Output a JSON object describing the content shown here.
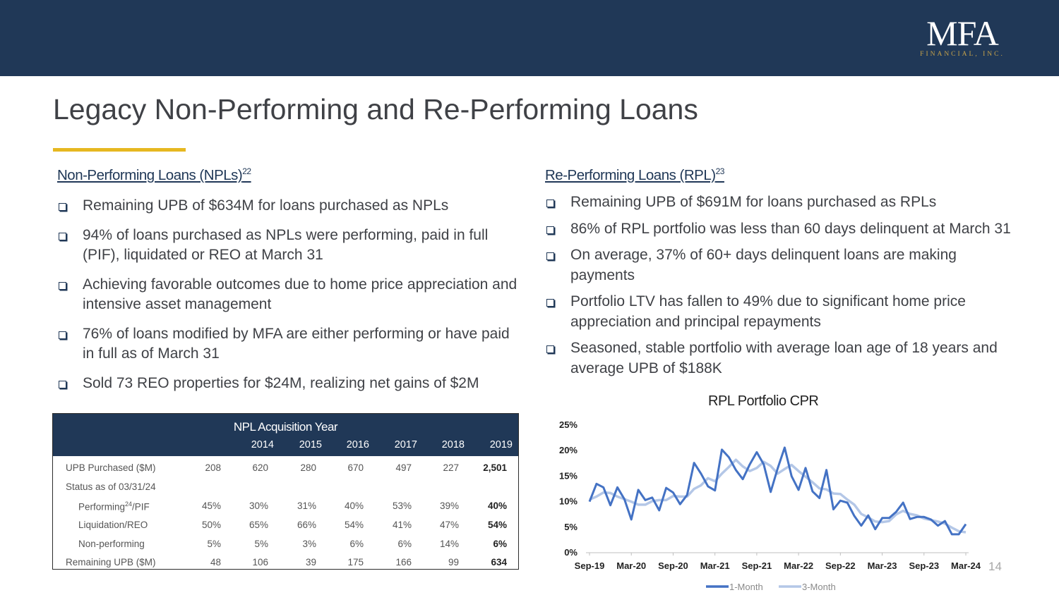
{
  "logo": {
    "main": "MFA",
    "sub": "FINANCIAL, INC."
  },
  "title": "Legacy Non-Performing and Re-Performing Loans",
  "npl": {
    "heading": "Non-Performing Loans (NPLs)",
    "heading_ref": "22",
    "bullets": [
      "Remaining UPB of $634M for loans purchased as NPLs",
      "94% of loans purchased as NPLs were performing, paid in full (PIF), liquidated or REO at March 31",
      "Achieving favorable outcomes due to home price appreciation and intensive asset management",
      "76% of loans modified by MFA are either performing or have paid in full as of March 31",
      "Sold 73 REO properties for $24M, realizing net gains of $2M"
    ]
  },
  "rpl": {
    "heading": "Re-Performing Loans (RPL)",
    "heading_ref": "23",
    "bullets": [
      "Remaining UPB of $691M for loans purchased as RPLs",
      "86% of RPL portfolio was less than 60 days delinquent at March 31",
      "On average, 37% of 60+ days delinquent loans are making payments",
      "Portfolio LTV has fallen to 49% due to significant home price appreciation and principal repayments",
      "Seasoned, stable portfolio with average loan age of 18 years and average UPB of $188K"
    ]
  },
  "npl_table": {
    "caption": "NPL Acquisition Year",
    "columns": [
      "2014",
      "2015",
      "2016",
      "2017",
      "2018",
      "2019",
      "Total"
    ],
    "rows": [
      {
        "label": "UPB Purchased ($M)",
        "values": [
          "208",
          "620",
          "280",
          "670",
          "497",
          "227",
          "2,501"
        ]
      },
      {
        "label": "Status as of 03/31/24",
        "values": []
      },
      {
        "label": "Performing",
        "label_ref": "24",
        "label_suffix": "/PIF",
        "values": [
          "45%",
          "30%",
          "31%",
          "40%",
          "53%",
          "39%",
          "40%"
        ]
      },
      {
        "label": "Liquidation/REO",
        "values": [
          "50%",
          "65%",
          "66%",
          "54%",
          "41%",
          "47%",
          "54%"
        ]
      },
      {
        "label": "Non-performing",
        "values": [
          "5%",
          "5%",
          "3%",
          "6%",
          "6%",
          "14%",
          "6%"
        ]
      },
      {
        "label": "Remaining UPB ($M)",
        "values": [
          "48",
          "106",
          "39",
          "175",
          "166",
          "99",
          "634"
        ]
      }
    ]
  },
  "chart_data": {
    "type": "line",
    "title": "RPL Portfolio CPR",
    "xlabel": "",
    "ylabel": "",
    "ylim": [
      0,
      25
    ],
    "yticks": [
      "0%",
      "5%",
      "10%",
      "15%",
      "20%",
      "25%"
    ],
    "xtick_labels": [
      "Sep-19",
      "Mar-20",
      "Sep-20",
      "Mar-21",
      "Sep-21",
      "Mar-22",
      "Sep-22",
      "Mar-23",
      "Sep-23",
      "Mar-24"
    ],
    "grid": false,
    "legend": "bottom",
    "colors": {
      "one_month": "#4472c4",
      "three_month": "#b4c7e7"
    },
    "x": [
      "Sep-19",
      "Oct-19",
      "Nov-19",
      "Dec-19",
      "Jan-20",
      "Feb-20",
      "Mar-20",
      "Apr-20",
      "May-20",
      "Jun-20",
      "Jul-20",
      "Aug-20",
      "Sep-20",
      "Oct-20",
      "Nov-20",
      "Dec-20",
      "Jan-21",
      "Feb-21",
      "Mar-21",
      "Apr-21",
      "May-21",
      "Jun-21",
      "Jul-21",
      "Aug-21",
      "Sep-21",
      "Oct-21",
      "Nov-21",
      "Dec-21",
      "Jan-22",
      "Feb-22",
      "Mar-22",
      "Apr-22",
      "May-22",
      "Jun-22",
      "Jul-22",
      "Aug-22",
      "Sep-22",
      "Oct-22",
      "Nov-22",
      "Dec-22",
      "Jan-23",
      "Feb-23",
      "Mar-23",
      "Apr-23",
      "May-23",
      "Jun-23",
      "Jul-23",
      "Aug-23",
      "Sep-23",
      "Oct-23",
      "Nov-23",
      "Dec-23",
      "Jan-24",
      "Feb-24",
      "Mar-24"
    ],
    "series": [
      {
        "name": "1-Month",
        "values": [
          10.0,
          13.5,
          12.8,
          9.3,
          12.8,
          10.5,
          6.5,
          12.3,
          10.3,
          10.8,
          8.3,
          12.7,
          11.8,
          9.5,
          11.3,
          17.6,
          15.5,
          13.0,
          12.2,
          20.2,
          18.7,
          16.2,
          14.4,
          17.3,
          19.7,
          17.3,
          11.9,
          16.5,
          20.6,
          15.0,
          12.3,
          16.6,
          12.0,
          10.7,
          16.2,
          8.5,
          10.2,
          9.8,
          7.2,
          5.3,
          7.3,
          4.6,
          6.8,
          6.8,
          8.0,
          9.8,
          6.6,
          7.0,
          7.0,
          6.5,
          5.3,
          6.2,
          3.6,
          3.6,
          5.6
        ]
      },
      {
        "name": "3-Month",
        "values": [
          10.4,
          11.0,
          11.8,
          11.7,
          11.0,
          10.5,
          10.0,
          9.4,
          9.4,
          10.1,
          10.3,
          10.3,
          11.1,
          11.0,
          11.0,
          12.5,
          13.2,
          14.6,
          14.0,
          15.5,
          16.8,
          18.2,
          16.9,
          16.0,
          16.6,
          17.8,
          17.0,
          15.5,
          16.4,
          17.2,
          16.0,
          14.9,
          13.8,
          12.6,
          12.4,
          11.6,
          11.5,
          10.4,
          9.4,
          7.6,
          6.9,
          6.1,
          6.0,
          6.2,
          7.5,
          8.2,
          7.6,
          7.3,
          6.7,
          6.4,
          6.1,
          5.7,
          4.9,
          4.2,
          4.0
        ]
      }
    ]
  },
  "page_number": "14"
}
